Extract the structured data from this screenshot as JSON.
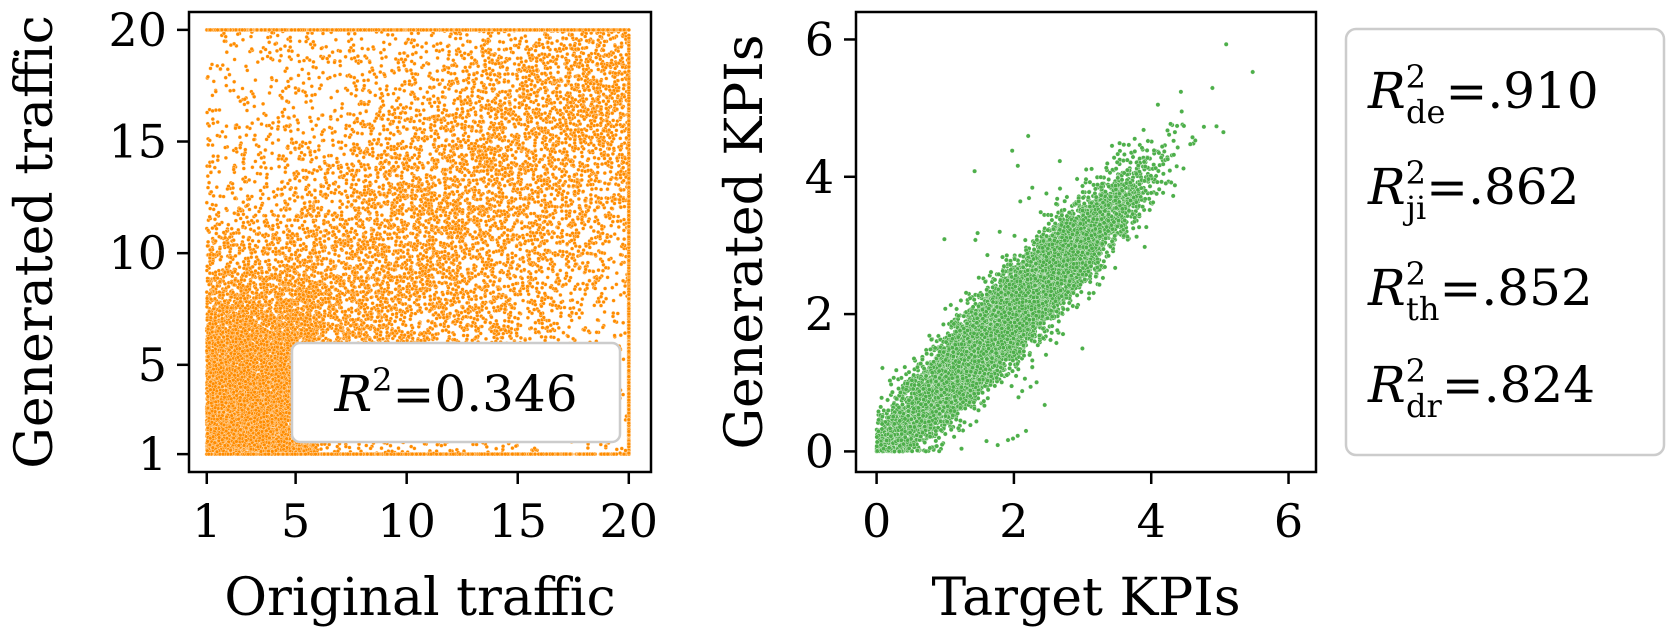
{
  "chart_data": [
    {
      "type": "scatter",
      "xlabel": "Original traffic",
      "ylabel": "Generated traffic",
      "xlim": [
        0.2,
        21.0
      ],
      "ylim": [
        0.2,
        20.8
      ],
      "xticks": [
        1,
        5,
        10,
        15,
        20
      ],
      "yticks": [
        1,
        5,
        10,
        15,
        20
      ],
      "grid": false,
      "color": "#ff8c00",
      "n_points": 22000,
      "value_range": [
        1,
        20
      ],
      "annotation": {
        "symbol": "R",
        "superscript": "2",
        "text": "=0.346",
        "placement": "bottom-right"
      }
    },
    {
      "type": "scatter",
      "xlabel": "Target KPIs",
      "ylabel": "Generated KPIs",
      "xlim": [
        -0.3,
        6.4
      ],
      "ylim": [
        -0.3,
        6.4
      ],
      "xticks": [
        0,
        2,
        4,
        6
      ],
      "yticks": [
        0,
        2,
        4,
        6
      ],
      "grid": false,
      "color": "#4daf4a",
      "n_points": 12000,
      "annotation_placement": "outside-right",
      "annotations": [
        {
          "symbol": "R",
          "superscript": "2",
          "subscript": "de",
          "text": "=.910"
        },
        {
          "symbol": "R",
          "superscript": "2",
          "subscript": "ji",
          "text": "=.862"
        },
        {
          "symbol": "R",
          "superscript": "2",
          "subscript": "th",
          "text": "=.852"
        },
        {
          "symbol": "R",
          "superscript": "2",
          "subscript": "dr",
          "text": "=.824"
        }
      ]
    }
  ]
}
